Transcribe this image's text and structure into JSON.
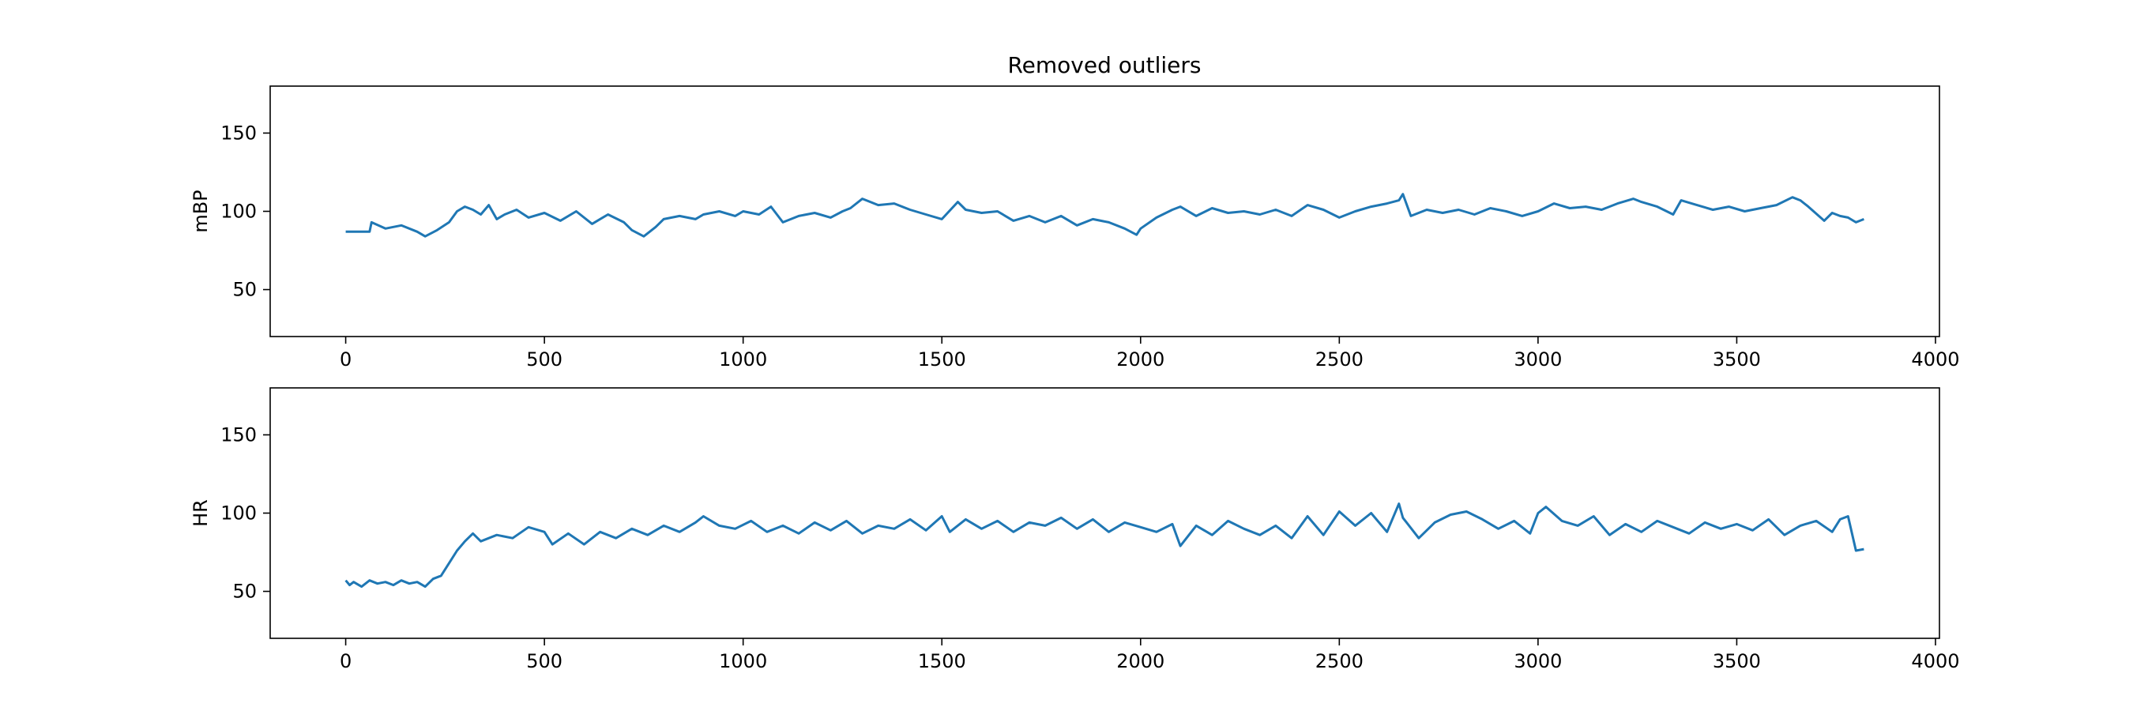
{
  "title": "Removed outliers",
  "colors": {
    "line": "#1f77b4",
    "frame": "#000000",
    "background": "#ffffff"
  },
  "chart_data": [
    {
      "type": "line",
      "title": "Removed outliers",
      "xlabel": "",
      "ylabel": "mBP",
      "xlim": [
        -190,
        4010
      ],
      "ylim": [
        20,
        180
      ],
      "xticks": [
        0,
        500,
        1000,
        1500,
        2000,
        2500,
        3000,
        3500,
        4000
      ],
      "yticks": [
        50,
        100,
        150
      ],
      "grid": false,
      "series": [
        {
          "x": [
            0,
            40,
            60,
            65,
            100,
            140,
            180,
            200,
            230,
            260,
            280,
            300,
            320,
            340,
            360,
            380,
            400,
            430,
            460,
            500,
            540,
            580,
            620,
            660,
            700,
            720,
            750,
            780,
            800,
            840,
            880,
            900,
            940,
            980,
            1000,
            1040,
            1070,
            1100,
            1140,
            1180,
            1220,
            1250,
            1270,
            1300,
            1340,
            1380,
            1420,
            1460,
            1500,
            1540,
            1560,
            1600,
            1640,
            1680,
            1720,
            1760,
            1800,
            1840,
            1880,
            1920,
            1960,
            1990,
            2000,
            2040,
            2080,
            2100,
            2140,
            2180,
            2220,
            2260,
            2300,
            2340,
            2380,
            2420,
            2460,
            2500,
            2540,
            2580,
            2620,
            2650,
            2660,
            2680,
            2720,
            2760,
            2800,
            2840,
            2880,
            2920,
            2960,
            3000,
            3040,
            3080,
            3120,
            3160,
            3200,
            3240,
            3260,
            3300,
            3340,
            3360,
            3400,
            3440,
            3480,
            3520,
            3560,
            3600,
            3640,
            3660,
            3680,
            3720,
            3740,
            3760,
            3780,
            3800,
            3820
          ],
          "y": [
            87,
            87,
            87,
            93,
            89,
            91,
            87,
            84,
            88,
            93,
            100,
            103,
            101,
            98,
            104,
            95,
            98,
            101,
            96,
            99,
            94,
            100,
            92,
            98,
            93,
            88,
            84,
            90,
            95,
            97,
            95,
            98,
            100,
            97,
            100,
            98,
            103,
            93,
            97,
            99,
            96,
            100,
            102,
            108,
            104,
            105,
            101,
            98,
            95,
            106,
            101,
            99,
            100,
            94,
            97,
            93,
            97,
            91,
            95,
            93,
            89,
            85,
            89,
            96,
            101,
            103,
            97,
            102,
            99,
            100,
            98,
            101,
            97,
            104,
            101,
            96,
            100,
            103,
            105,
            107,
            111,
            97,
            101,
            99,
            101,
            98,
            102,
            100,
            97,
            100,
            105,
            102,
            103,
            101,
            105,
            108,
            106,
            103,
            98,
            107,
            104,
            101,
            103,
            100,
            102,
            104,
            109,
            107,
            103,
            94,
            99,
            97,
            96,
            93,
            95
          ]
        }
      ]
    },
    {
      "type": "line",
      "title": "",
      "xlabel": "",
      "ylabel": "HR",
      "xlim": [
        -190,
        4010
      ],
      "ylim": [
        20,
        180
      ],
      "xticks": [
        0,
        500,
        1000,
        1500,
        2000,
        2500,
        3000,
        3500,
        4000
      ],
      "yticks": [
        50,
        100,
        150
      ],
      "grid": false,
      "series": [
        {
          "x": [
            0,
            10,
            20,
            40,
            60,
            80,
            100,
            120,
            140,
            160,
            180,
            200,
            220,
            240,
            260,
            280,
            300,
            320,
            340,
            380,
            420,
            460,
            500,
            520,
            560,
            600,
            640,
            680,
            720,
            760,
            800,
            840,
            880,
            900,
            940,
            980,
            1020,
            1060,
            1100,
            1140,
            1180,
            1220,
            1260,
            1300,
            1340,
            1380,
            1420,
            1460,
            1500,
            1520,
            1560,
            1600,
            1640,
            1680,
            1720,
            1760,
            1800,
            1840,
            1880,
            1920,
            1960,
            2000,
            2040,
            2080,
            2100,
            2140,
            2180,
            2220,
            2260,
            2300,
            2340,
            2380,
            2420,
            2460,
            2500,
            2540,
            2580,
            2620,
            2650,
            2660,
            2700,
            2740,
            2780,
            2820,
            2860,
            2900,
            2940,
            2980,
            3000,
            3020,
            3060,
            3100,
            3140,
            3180,
            3220,
            3260,
            3300,
            3340,
            3380,
            3420,
            3460,
            3500,
            3540,
            3580,
            3620,
            3660,
            3700,
            3740,
            3760,
            3780,
            3800,
            3820
          ],
          "y": [
            57,
            54,
            56,
            53,
            57,
            55,
            56,
            54,
            57,
            55,
            56,
            53,
            58,
            60,
            68,
            76,
            82,
            87,
            82,
            86,
            84,
            91,
            88,
            80,
            87,
            80,
            88,
            84,
            90,
            86,
            92,
            88,
            94,
            98,
            92,
            90,
            95,
            88,
            92,
            87,
            94,
            89,
            95,
            87,
            92,
            90,
            96,
            89,
            98,
            88,
            96,
            90,
            95,
            88,
            94,
            92,
            97,
            90,
            96,
            88,
            94,
            91,
            88,
            93,
            79,
            92,
            86,
            95,
            90,
            86,
            92,
            84,
            98,
            86,
            101,
            92,
            100,
            88,
            106,
            97,
            84,
            94,
            99,
            101,
            96,
            90,
            95,
            87,
            100,
            104,
            95,
            92,
            98,
            86,
            93,
            88,
            95,
            91,
            87,
            94,
            90,
            93,
            89,
            96,
            86,
            92,
            95,
            88,
            96,
            98,
            76,
            77
          ]
        }
      ]
    }
  ]
}
